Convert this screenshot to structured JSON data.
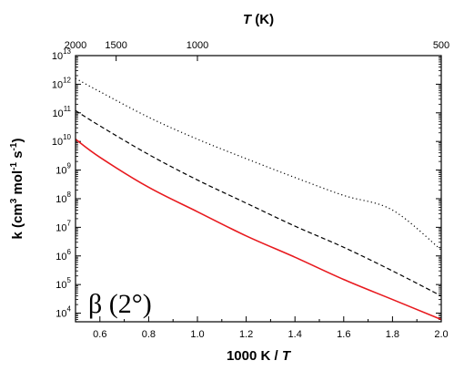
{
  "chart_data": {
    "type": "line",
    "xlabel": "1000 K / T",
    "ylabel": "k (cm3 mol-1 s-1)",
    "top_xlabel": "T (K)",
    "xlim": [
      0.5,
      2.0
    ],
    "ylim": [
      5000,
      10000000000000
    ],
    "yscale": "log",
    "grid": false,
    "x_ticks": [
      0.6,
      0.8,
      1.0,
      1.2,
      1.4,
      1.6,
      1.8,
      2.0
    ],
    "x_tick_labels": [
      "0.6",
      "0.8",
      "1.0",
      "1.2",
      "1.4",
      "1.6",
      "1.8",
      "2.0"
    ],
    "y_tick_exponents": [
      4,
      5,
      6,
      7,
      8,
      9,
      10,
      11,
      12,
      13
    ],
    "top_ticks": [
      {
        "T": 2000,
        "label": "2000"
      },
      {
        "T": 1500,
        "label": "1500"
      },
      {
        "T": 1000,
        "label": "1000"
      },
      {
        "T": 500,
        "label": "500"
      }
    ],
    "annotation": "β (2°)",
    "series": [
      {
        "style": "dotted",
        "color": "#000000",
        "x": [
          0.5,
          0.6,
          0.8,
          1.0,
          1.2,
          1.4,
          1.6,
          1.8,
          2.0
        ],
        "y": [
          1600000000000.0,
          550000000000.0,
          70000000000.0,
          12000000000.0,
          2500000000.0,
          550000000.0,
          130000000.0,
          40000000.0,
          1600000.0
        ]
      },
      {
        "style": "dashed",
        "color": "#000000",
        "x": [
          0.5,
          0.6,
          0.8,
          1.0,
          1.2,
          1.4,
          1.6,
          1.8,
          2.0
        ],
        "y": [
          120000000000.0,
          35000000000.0,
          3500000000.0,
          450000000.0,
          70000000.0,
          11000000.0,
          2000000.0,
          300000.0,
          40000.0
        ]
      },
      {
        "style": "solid",
        "color": "#e8191e",
        "x": [
          0.5,
          0.6,
          0.8,
          1.0,
          1.2,
          1.4,
          1.6,
          1.8,
          2.0
        ],
        "y": [
          12000000000.0,
          2800000000.0,
          250000000.0,
          35000000.0,
          5000000.0,
          900000.0,
          150000.0,
          30000.0,
          6000.0
        ]
      }
    ]
  }
}
